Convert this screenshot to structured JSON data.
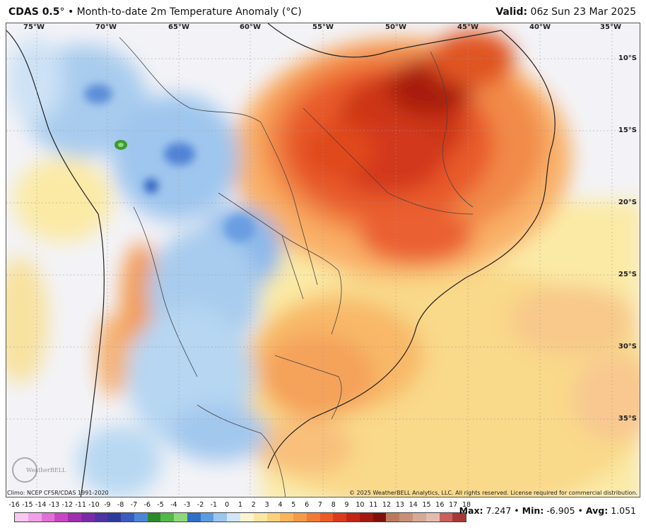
{
  "header": {
    "model": "CDAS 0.5",
    "degree": "°",
    "description": " • Month-to-date 2m Temperature Anomaly (°C)",
    "valid_label": "Valid:",
    "valid_value": " 06z Sun 23 Mar 2025"
  },
  "map": {
    "lon_labels": [
      "75°W",
      "70°W",
      "65°W",
      "60°W",
      "55°W",
      "50°W",
      "45°W",
      "40°W",
      "35°W"
    ],
    "lat_labels": [
      "10°S",
      "15°S",
      "20°S",
      "25°S",
      "30°S",
      "35°S"
    ],
    "logo_text": "WeatherBELL"
  },
  "footer": {
    "climo": "Climo: NCEP CFSR/CDAS 1991-2020",
    "copyright": "© 2025 WeatherBELL Analytics, LLC. All rights reserved. License required for commercial distribution."
  },
  "colorbar": {
    "labels": [
      "-16",
      "-15",
      "-14",
      "-13",
      "-12",
      "-11",
      "-10",
      "-9",
      "-8",
      "-7",
      "-6",
      "-5",
      "-4",
      "-3",
      "-2",
      "-1",
      "0",
      "1",
      "2",
      "3",
      "4",
      "5",
      "6",
      "7",
      "8",
      "9",
      "10",
      "11",
      "12",
      "13",
      "14",
      "15",
      "16",
      "17",
      "18"
    ],
    "colors": [
      "#f9c8f0",
      "#f0a0e6",
      "#e070d6",
      "#c846c6",
      "#a02eb0",
      "#7a2aa8",
      "#4f32a6",
      "#2e3a9c",
      "#3a5cc0",
      "#4a86d8",
      "#2a8a2a",
      "#52b848",
      "#8fd87a",
      "#2e6fc8",
      "#5b9be0",
      "#9cc6ef",
      "#d2e6f7",
      "#f8f5d0",
      "#fbe7a2",
      "#fad27a",
      "#f8b55c",
      "#f59a46",
      "#f27a34",
      "#ec5a26",
      "#dc3a1c",
      "#c42414",
      "#a31810",
      "#7f110c",
      "#bb7a5c",
      "#c89078",
      "#d6a896",
      "#e2bcb0",
      "#c8605c",
      "#a83838"
    ]
  },
  "stats": {
    "max_label": "Max:",
    "max_value": "7.247",
    "min_label": "Min:",
    "min_value": "-6.905",
    "avg_label": "Avg:",
    "avg_value": "1.051",
    "sep": " • "
  }
}
